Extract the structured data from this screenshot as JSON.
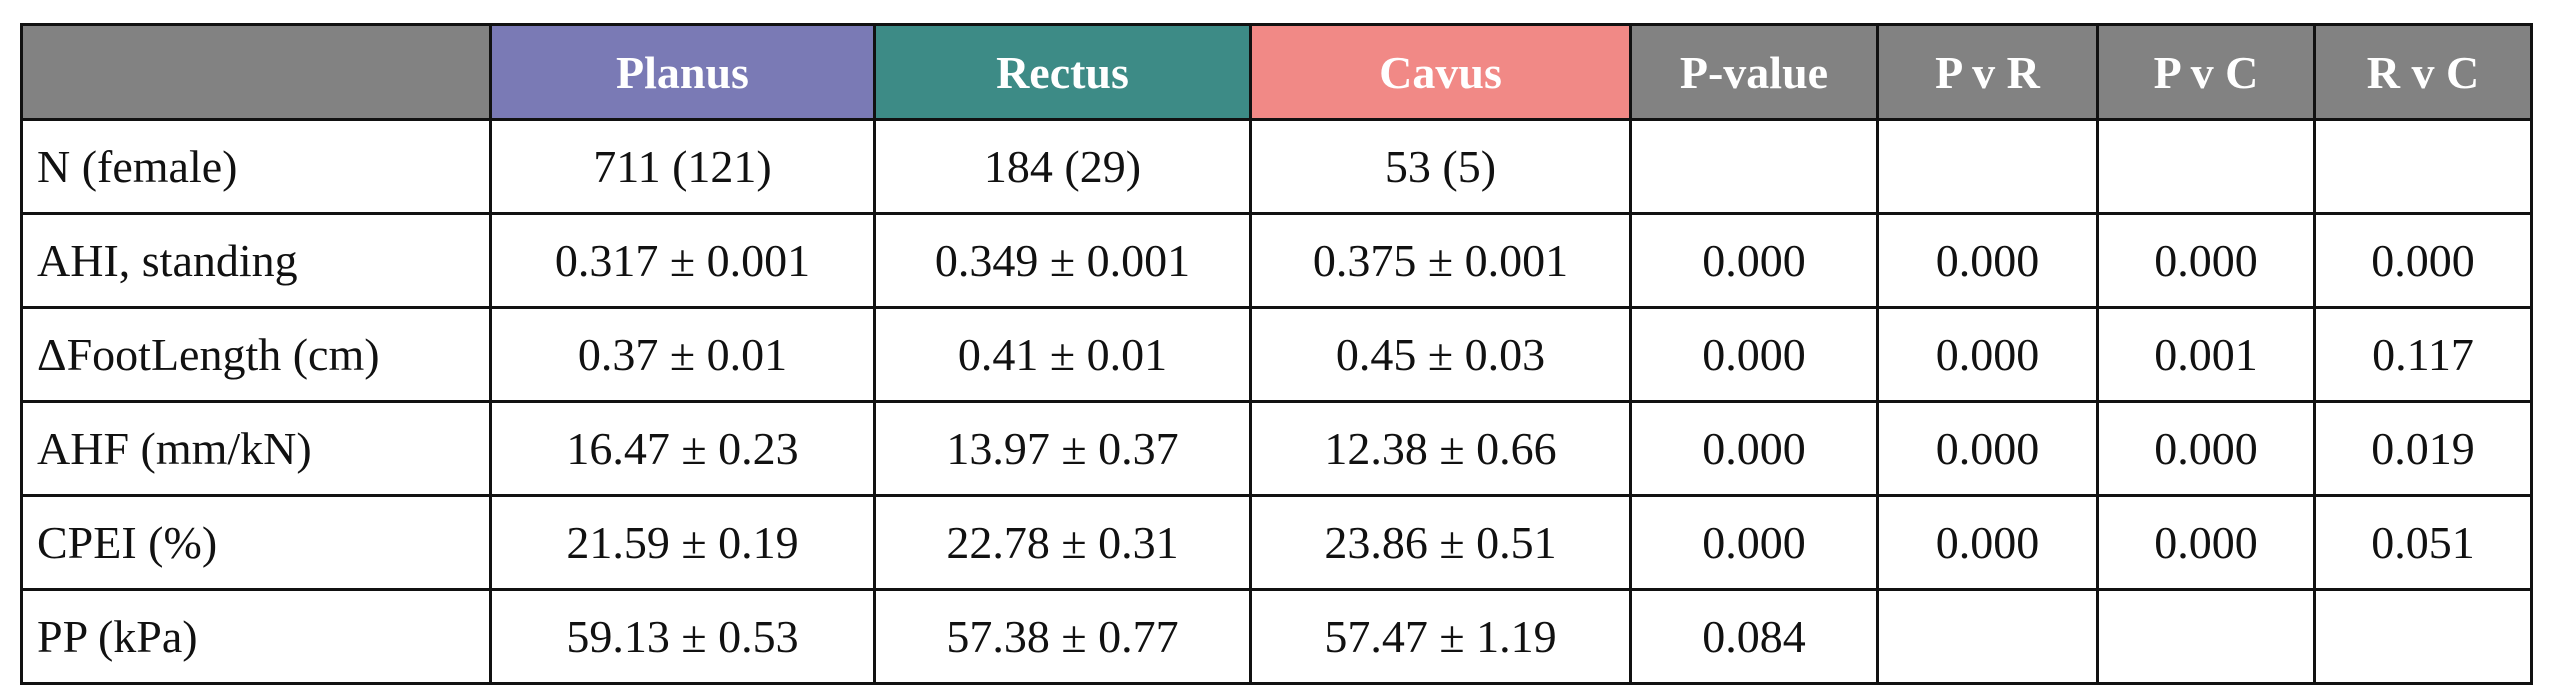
{
  "table": {
    "header": [
      "Planus",
      "Rectus",
      "Cavus",
      "P-value",
      "P v R",
      "P v C",
      "R v C"
    ],
    "header_colors": [
      "#7a7ab5",
      "#3d8b86",
      "#f18986",
      "#828282",
      "#828282",
      "#828282",
      "#828282"
    ],
    "rows": [
      [
        "N (female)",
        "711 (121)",
        "184 (29)",
        "53 (5)",
        null,
        null,
        null,
        null
      ],
      [
        "AHI, standing",
        "0.317 ± 0.001",
        "0.349 ± 0.001",
        "0.375 ± 0.001",
        "0.000",
        "0.000",
        "0.000",
        "0.000"
      ],
      [
        "ΔFootLength (cm)",
        "0.37 ± 0.01",
        "0.41 ± 0.01",
        "0.45 ± 0.03",
        "0.000",
        "0.000",
        "0.001",
        "0.117"
      ],
      [
        "AHF (mm/kN)",
        "16.47 ± 0.23",
        "13.97 ± 0.37",
        "12.38 ± 0.66",
        "0.000",
        "0.000",
        "0.000",
        "0.019"
      ],
      [
        "CPEI (%)",
        "21.59 ± 0.19",
        "22.78 ± 0.31",
        "23.86 ± 0.51",
        "0.000",
        "0.000",
        "0.000",
        "0.051"
      ],
      [
        "PP (kPa)",
        "59.13 ± 0.53",
        "57.38 ± 0.77",
        "57.47 ± 1.19",
        "0.084",
        null,
        null,
        null
      ]
    ]
  }
}
